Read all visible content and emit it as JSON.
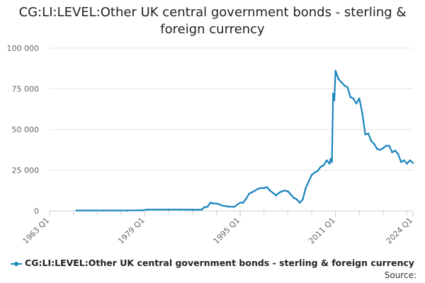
{
  "title": "CG:LI:LEVEL:Other UK central government bonds - sterling & foreign currency",
  "source_label": "Source:",
  "colors": {
    "series": "#1a84bd",
    "grid": "#e6e6e6",
    "axis": "#c8d0dc",
    "text": "#666666"
  },
  "chart_data": {
    "type": "line",
    "title": "CG:LI:LEVEL:Other UK central government bonds - sterling & foreign currency",
    "xlabel": "",
    "ylabel": "",
    "ylim": [
      0,
      100000
    ],
    "yticks": [
      0,
      25000,
      50000,
      75000,
      100000
    ],
    "ytick_labels": [
      "0",
      "25 000",
      "50 000",
      "75 000",
      "100 000"
    ],
    "xlim": [
      1963.0,
      2024.0
    ],
    "xticks": [
      1963.0,
      1979.0,
      1995.0,
      2011.0,
      2024.0
    ],
    "xtick_labels": [
      "1963 Q1",
      "1979 Q1",
      "1995 Q1",
      "2011 Q1",
      "2024 Q1"
    ],
    "grid": true,
    "legend_position": "bottom",
    "series": [
      {
        "name": "CG:LI:LEVEL:Other UK central government bonds - sterling & foreign currency",
        "x": [
          1967.5,
          1970,
          1972,
          1974,
          1976,
          1977.5,
          1978.5,
          1979.5,
          1981,
          1983,
          1985,
          1987,
          1988.5,
          1989.0,
          1989.5,
          1990,
          1990.5,
          1991,
          1991.5,
          1992,
          1993,
          1994,
          1995,
          1995.5,
          1996,
          1996.5,
          1997,
          1997.5,
          1998,
          1998.5,
          1999,
          1999.5,
          2000,
          2000.5,
          2001,
          2001.5,
          2002,
          2002.5,
          2003,
          2003.5,
          2004,
          2004.5,
          2005,
          2005.5,
          2006,
          2006.5,
          2007,
          2007.5,
          2008,
          2008.5,
          2009,
          2009.5,
          2010,
          2010.2,
          2010.4,
          2010.6,
          2010.8,
          2011,
          2011.5,
          2012,
          2012.5,
          2013,
          2013.5,
          2014,
          2014.5,
          2015,
          2015.5,
          2016,
          2016.5,
          2017,
          2017.5,
          2018,
          2018.5,
          2019,
          2019.5,
          2020,
          2020.5,
          2021,
          2021.5,
          2022,
          2022.5,
          2023,
          2023.5,
          2024
        ],
        "values": [
          200,
          200,
          200,
          200,
          200,
          300,
          300,
          800,
          800,
          800,
          800,
          700,
          700,
          2200,
          2500,
          5000,
          4500,
          4500,
          4000,
          3200,
          2600,
          2500,
          5000,
          5000,
          7500,
          10500,
          11500,
          12500,
          13500,
          14000,
          14000,
          14500,
          12500,
          11000,
          9500,
          11000,
          12000,
          12500,
          12000,
          10000,
          8000,
          7000,
          5000,
          7000,
          14000,
          18000,
          22000,
          23500,
          24500,
          27000,
          28000,
          31000,
          29000,
          32000,
          30000,
          72000,
          68000,
          86000,
          81000,
          79000,
          77000,
          76000,
          70000,
          69000,
          66000,
          69000,
          60000,
          47000,
          47500,
          43000,
          41000,
          38000,
          37500,
          38500,
          40000,
          40000,
          36000,
          37000,
          35000,
          30000,
          31000,
          29000,
          31000,
          29500
        ]
      }
    ]
  }
}
